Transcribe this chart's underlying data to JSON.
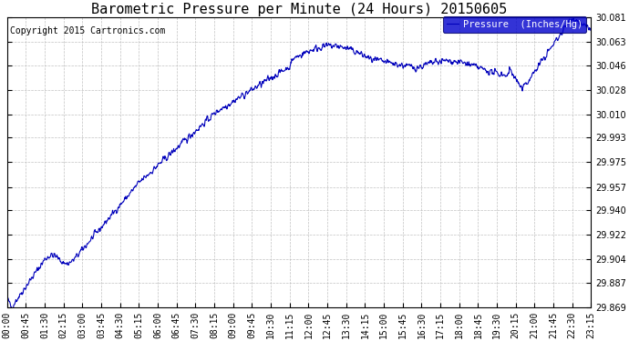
{
  "title": "Barometric Pressure per Minute (24 Hours) 20150605",
  "copyright": "Copyright 2015 Cartronics.com",
  "legend_label": "Pressure  (Inches/Hg)",
  "line_color": "#0000bb",
  "legend_bg": "#0000cc",
  "legend_text_color": "#ffffff",
  "background_color": "#ffffff",
  "grid_color": "#bbbbbb",
  "ylim": [
    29.869,
    30.081
  ],
  "yticks": [
    29.869,
    29.887,
    29.904,
    29.922,
    29.94,
    29.957,
    29.975,
    29.993,
    30.01,
    30.028,
    30.046,
    30.063,
    30.081
  ],
  "title_fontsize": 11,
  "tick_fontsize": 7,
  "copyright_fontsize": 7
}
